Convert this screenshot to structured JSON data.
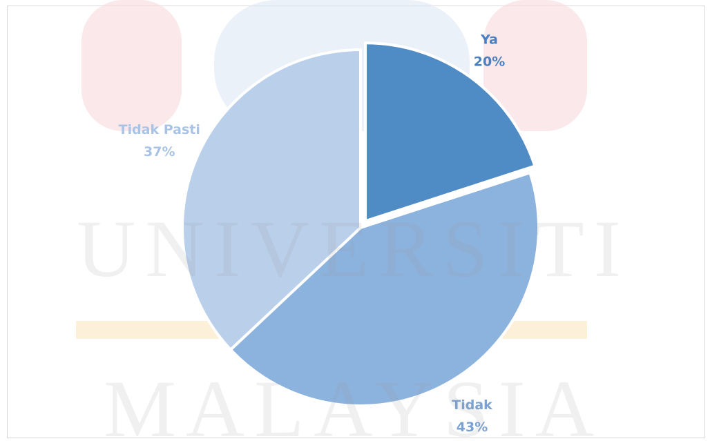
{
  "chart_data": {
    "type": "pie",
    "categories": [
      "Ya",
      "Tidak",
      "Tidak Pasti"
    ],
    "values": [
      20,
      43,
      37
    ],
    "value_labels": [
      "20%",
      "43%",
      "37%"
    ],
    "colors": [
      "#4f8bc5",
      "#8cb2de",
      "#bacfea"
    ],
    "label_colors": [
      "#4a80c0",
      "#7ba2d2",
      "#a9c3e4"
    ],
    "exploded": [
      true,
      false,
      false
    ]
  },
  "watermark": {
    "lines": [
      "UNIVERSITI",
      "MALAYSIA"
    ]
  }
}
